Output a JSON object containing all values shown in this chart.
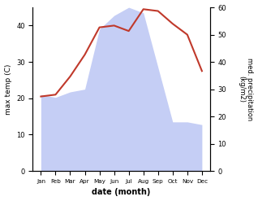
{
  "months": [
    "Jan",
    "Feb",
    "Mar",
    "Apr",
    "May",
    "Jun",
    "Jul",
    "Aug",
    "Sep",
    "Oct",
    "Nov",
    "Dec"
  ],
  "temp": [
    20.5,
    21.0,
    26.0,
    32.0,
    39.5,
    40.0,
    38.5,
    44.5,
    44.0,
    40.5,
    37.5,
    27.5
  ],
  "precip": [
    28,
    27,
    29,
    30,
    52,
    57,
    60,
    58,
    38,
    18,
    18,
    17
  ],
  "temp_color": "#c0392b",
  "precip_fill_color": "#c5cef5",
  "xlabel": "date (month)",
  "ylabel_left": "max temp (C)",
  "ylabel_right": "med. precipitation\n(kg/m2)",
  "ylim_left": [
    0,
    45
  ],
  "ylim_right": [
    0,
    60
  ],
  "yticks_left": [
    0,
    10,
    20,
    30,
    40
  ],
  "yticks_right": [
    0,
    10,
    20,
    30,
    40,
    50,
    60
  ],
  "bg_color": "#ffffff"
}
